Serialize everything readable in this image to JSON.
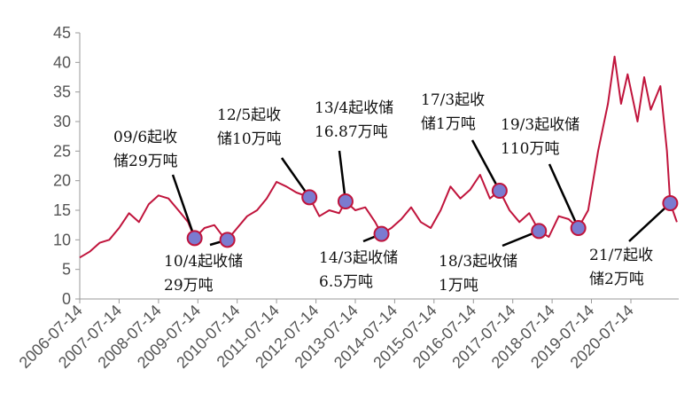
{
  "chart_data": {
    "type": "line",
    "x": [
      "2006-07-14",
      "2006-10-14",
      "2007-01-14",
      "2007-04-14",
      "2007-07-14",
      "2007-10-14",
      "2008-01-14",
      "2008-04-14",
      "2008-07-14",
      "2008-10-14",
      "2009-01-14",
      "2009-04-14",
      "2009-06-14",
      "2009-09-14",
      "2009-12-14",
      "2010-02-14",
      "2010-04-14",
      "2010-07-14",
      "2010-10-14",
      "2011-01-14",
      "2011-04-14",
      "2011-07-14",
      "2011-10-14",
      "2012-01-14",
      "2012-05-14",
      "2012-08-14",
      "2012-11-14",
      "2013-02-14",
      "2013-04-14",
      "2013-07-14",
      "2013-10-14",
      "2014-01-14",
      "2014-03-14",
      "2014-06-14",
      "2014-09-14",
      "2014-12-14",
      "2015-03-14",
      "2015-06-14",
      "2015-09-14",
      "2015-12-14",
      "2016-03-14",
      "2016-06-14",
      "2016-09-14",
      "2016-12-14",
      "2017-03-14",
      "2017-06-14",
      "2017-09-14",
      "2017-12-14",
      "2018-03-14",
      "2018-06-14",
      "2018-09-14",
      "2018-12-14",
      "2019-03-14",
      "2019-06-14",
      "2019-09-14",
      "2019-12-14",
      "2020-02-14",
      "2020-04-14",
      "2020-06-14",
      "2020-09-14",
      "2020-11-14",
      "2021-01-14",
      "2021-04-14",
      "2021-06-14",
      "2021-07-14",
      "2021-09-14"
    ],
    "values": [
      7,
      8,
      9.5,
      10,
      12,
      14.5,
      13,
      16,
      17.5,
      17,
      15,
      13,
      10.3,
      12,
      12.5,
      11,
      10,
      12,
      14,
      15,
      17,
      19.8,
      19,
      18,
      17.2,
      14,
      15,
      14.5,
      16.5,
      15,
      15.5,
      13,
      11,
      12,
      13.5,
      15.5,
      13,
      12,
      15,
      19,
      17,
      18.5,
      21,
      17,
      18.3,
      15,
      13,
      14.5,
      11.5,
      10.5,
      14,
      13.5,
      12,
      15,
      25,
      33,
      41,
      33,
      38,
      30,
      37.5,
      32,
      36,
      25,
      16.2,
      13
    ],
    "color": "#c0143c",
    "xlim": [
      "2006-07-14",
      "2021-10-01"
    ],
    "xticks": [
      "2006-07-14",
      "2007-07-14",
      "2008-07-14",
      "2009-07-14",
      "2010-07-14",
      "2011-07-14",
      "2012-07-14",
      "2013-07-14",
      "2014-07-14",
      "2015-07-14",
      "2016-07-14",
      "2017-07-14",
      "2018-07-14",
      "2019-07-14",
      "2020-07-14"
    ],
    "ylim": [
      0,
      45
    ],
    "yticks": [
      0,
      5,
      10,
      15,
      20,
      25,
      30,
      35,
      40,
      45
    ],
    "grid": false,
    "annotations": [
      {
        "lines": [
          "09/6起收",
          "储29万吨"
        ],
        "x": "2009-06-14",
        "y": 10.3
      },
      {
        "lines": [
          "10/4起收储",
          "29万吨"
        ],
        "x": "2010-04-14",
        "y": 10
      },
      {
        "lines": [
          "12/5起收",
          "储10万吨"
        ],
        "x": "2012-05-14",
        "y": 17.2
      },
      {
        "lines": [
          "13/4起收储",
          "16.87万吨"
        ],
        "x": "2013-04-14",
        "y": 16.5
      },
      {
        "lines": [
          "14/3起收储",
          "6.5万吨"
        ],
        "x": "2014-03-14",
        "y": 11
      },
      {
        "lines": [
          "17/3起收",
          "储1万吨"
        ],
        "x": "2017-03-14",
        "y": 18.3
      },
      {
        "lines": [
          "18/3起收储",
          "1万吨"
        ],
        "x": "2018-03-14",
        "y": 11.5
      },
      {
        "lines": [
          "19/3起收储",
          "110万吨"
        ],
        "x": "2019-03-14",
        "y": 12
      },
      {
        "lines": [
          "21/7起收",
          "储2万吨"
        ],
        "x": "2021-07-14",
        "y": 16.2
      }
    ],
    "marker_color": "#7b7bd0"
  }
}
